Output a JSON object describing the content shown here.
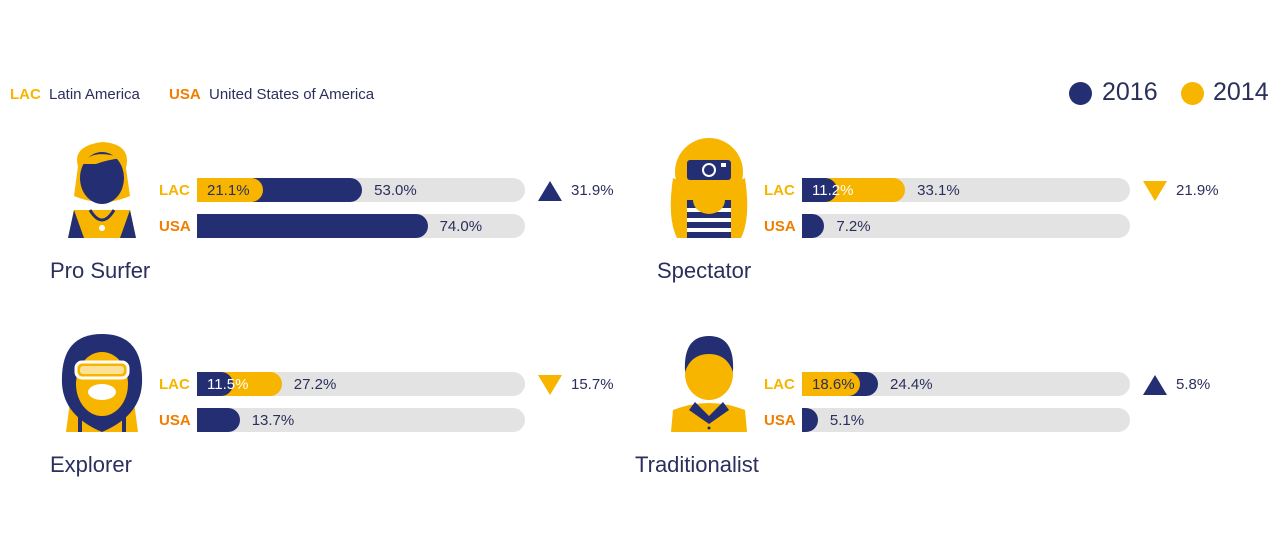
{
  "colors": {
    "y2016": "#232f72",
    "y2014": "#f7b500",
    "usa_label": "#ef7d00",
    "track": "#e3e3e3"
  },
  "legend": {
    "lac_abbr": "LAC",
    "lac_full": "Latin America",
    "usa_abbr": "USA",
    "usa_full": "United States of America",
    "year_a": "2016",
    "year_b": "2014"
  },
  "chart_data": {
    "type": "bar",
    "series_labels": [
      "2016",
      "2014"
    ],
    "groups": [
      {
        "name": "Pro Surfer",
        "icon": "pro-surfer-icon",
        "lac": {
          "v2014": 21.1,
          "v2016": 53.0,
          "label_2014": "21.1%",
          "label_2016": "53.0%"
        },
        "usa": {
          "v2016": 74.0,
          "label_2016": "74.0%"
        },
        "change": {
          "direction": "up",
          "label": "31.9%"
        }
      },
      {
        "name": "Spectator",
        "icon": "spectator-icon",
        "lac": {
          "v2016": 11.2,
          "v2014": 33.1,
          "label_2016": "11.2%",
          "label_2014": "33.1%"
        },
        "usa": {
          "v2016": 7.2,
          "label_2016": "7.2%"
        },
        "change": {
          "direction": "down",
          "label": "21.9%"
        }
      },
      {
        "name": "Explorer",
        "icon": "explorer-icon",
        "lac": {
          "v2016": 11.5,
          "v2014": 27.2,
          "label_2016": "11.5%",
          "label_2014": "27.2%"
        },
        "usa": {
          "v2016": 13.7,
          "label_2016": "13.7%"
        },
        "change": {
          "direction": "down",
          "label": "15.7%"
        }
      },
      {
        "name": "Traditionalist",
        "icon": "traditionalist-icon",
        "lac": {
          "v2014": 18.6,
          "v2016": 24.4,
          "label_2014": "18.6%",
          "label_2016": "24.4%"
        },
        "usa": {
          "v2016": 5.1,
          "label_2016": "5.1%"
        },
        "change": {
          "direction": "up",
          "label": "5.8%"
        }
      }
    ],
    "xlim": [
      0,
      100
    ]
  }
}
